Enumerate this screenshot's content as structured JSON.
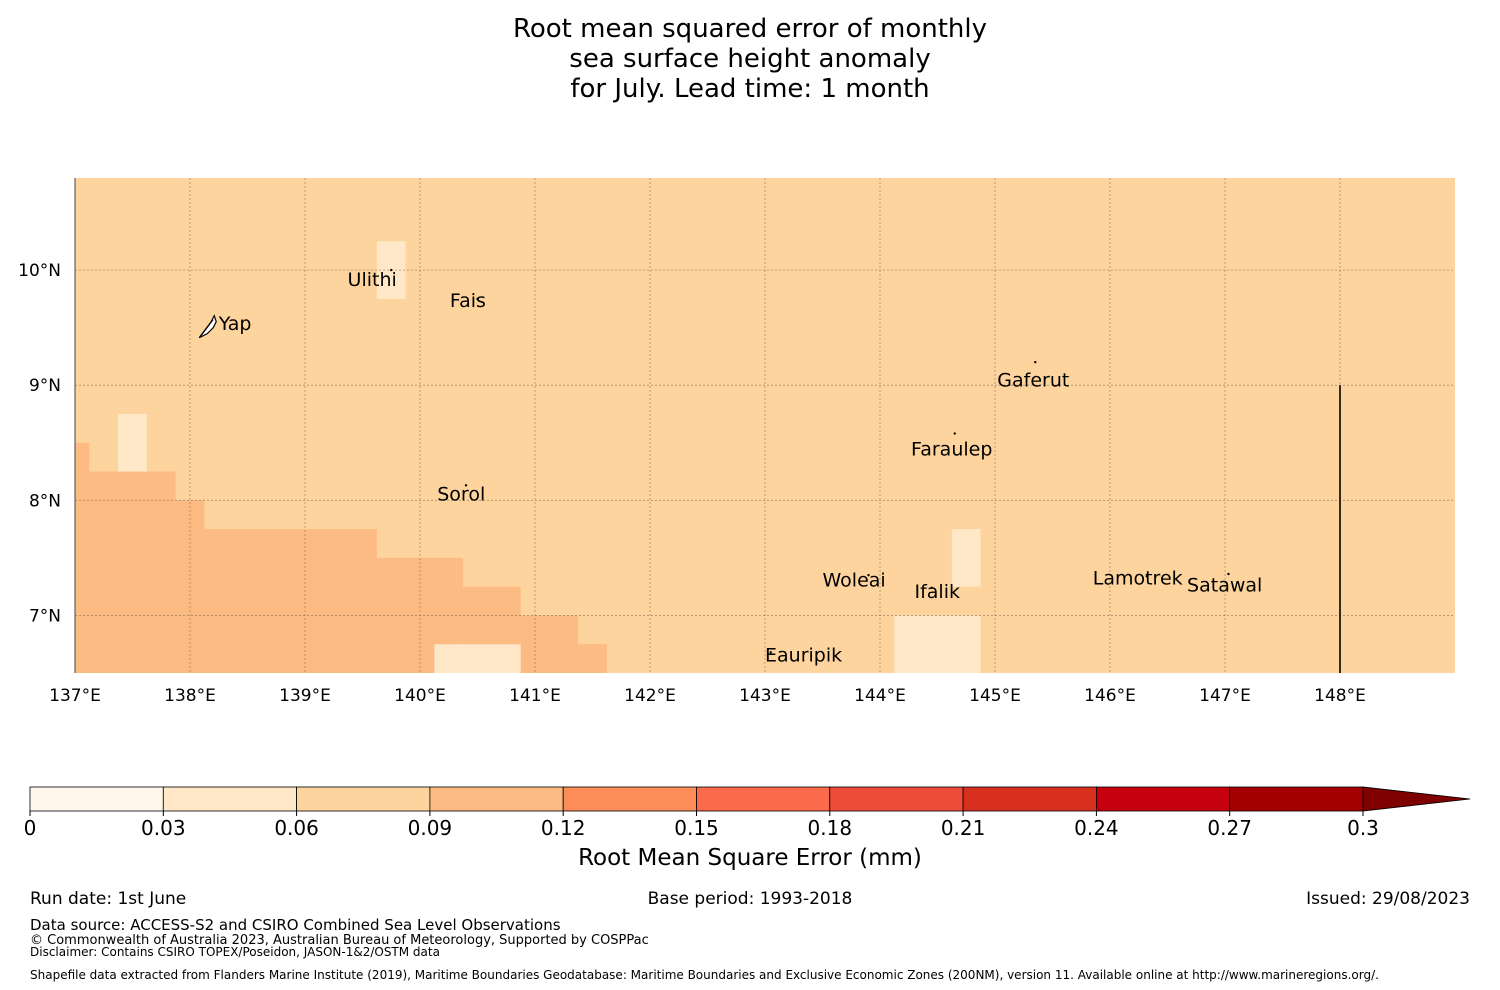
{
  "title": {
    "line1": "Root mean squared error of monthly",
    "line2": "sea surface height anomaly",
    "line3": "for July. Lead time: 1 month"
  },
  "map": {
    "lon_range": [
      137,
      149
    ],
    "lat_range": [
      6.5,
      10.8
    ],
    "x_ticks": [
      {
        "value": 137,
        "label": "137°E"
      },
      {
        "value": 138,
        "label": "138°E"
      },
      {
        "value": 139,
        "label": "139°E"
      },
      {
        "value": 140,
        "label": "140°E"
      },
      {
        "value": 141,
        "label": "141°E"
      },
      {
        "value": 142,
        "label": "142°E"
      },
      {
        "value": 143,
        "label": "143°E"
      },
      {
        "value": 144,
        "label": "144°E"
      },
      {
        "value": 145,
        "label": "145°E"
      },
      {
        "value": 146,
        "label": "146°E"
      },
      {
        "value": 147,
        "label": "147°E"
      },
      {
        "value": 148,
        "label": "148°E"
      }
    ],
    "y_ticks": [
      {
        "value": 10,
        "label": "10°N"
      },
      {
        "value": 9,
        "label": "9°N"
      },
      {
        "value": 8,
        "label": "8°N"
      },
      {
        "value": 7,
        "label": "7°N"
      }
    ],
    "background_color": "#fdd49e",
    "gridlines": true,
    "cells": [
      {
        "lon": [
          137.0,
          137.125
        ],
        "lat": [
          6.5,
          8.5
        ],
        "color": "#fdbb84"
      },
      {
        "lon": [
          137.125,
          137.875
        ],
        "lat": [
          6.5,
          8.25
        ],
        "color": "#fdbb84"
      },
      {
        "lon": [
          137.375,
          137.625
        ],
        "lat": [
          8.25,
          8.75
        ],
        "color": "#fee8c8"
      },
      {
        "lon": [
          137.875,
          138.125
        ],
        "lat": [
          6.5,
          8.0
        ],
        "color": "#fdbb84"
      },
      {
        "lon": [
          138.125,
          139.625
        ],
        "lat": [
          6.5,
          7.75
        ],
        "color": "#fdbb84"
      },
      {
        "lon": [
          139.625,
          140.375
        ],
        "lat": [
          6.5,
          7.5
        ],
        "color": "#fdbb84"
      },
      {
        "lon": [
          140.375,
          140.875
        ],
        "lat": [
          6.5,
          7.25
        ],
        "color": "#fdbb84"
      },
      {
        "lon": [
          140.875,
          141.375
        ],
        "lat": [
          6.5,
          7.0
        ],
        "color": "#fdbb84"
      },
      {
        "lon": [
          141.375,
          141.625
        ],
        "lat": [
          6.5,
          6.75
        ],
        "color": "#fdbb84"
      },
      {
        "lon": [
          140.125,
          140.875
        ],
        "lat": [
          6.5,
          6.75
        ],
        "color": "#fee8c8"
      },
      {
        "lon": [
          139.625,
          139.875
        ],
        "lat": [
          9.75,
          10.25
        ],
        "color": "#fee8c8"
      },
      {
        "lon": [
          144.125,
          144.875
        ],
        "lat": [
          6.5,
          7.0
        ],
        "color": "#fee8c8"
      },
      {
        "lon": [
          144.625,
          144.875
        ],
        "lat": [
          7.25,
          7.75
        ],
        "color": "#fee8c8"
      }
    ],
    "boundary_line": {
      "lon": 148.0,
      "lat": [
        6.5,
        9.0
      ]
    },
    "islands": [
      {
        "name": "Ulithi",
        "lon": 139.75,
        "lat": 10.0,
        "label_lon": 139.37,
        "label_lat": 9.86
      },
      {
        "name": "Fais",
        "lon": 140.5,
        "lat": 9.75,
        "label_lon": 140.26,
        "label_lat": 9.68
      },
      {
        "name": "Yap",
        "lon": 138.15,
        "lat": 9.5,
        "label_lon": 138.25,
        "label_lat": 9.48
      },
      {
        "name": "Gaferut",
        "lon": 145.35,
        "lat": 9.2,
        "label_lon": 145.02,
        "label_lat": 8.99
      },
      {
        "name": "Faraulep",
        "lon": 144.65,
        "lat": 8.58,
        "label_lon": 144.27,
        "label_lat": 8.39
      },
      {
        "name": "Sorol",
        "lon": 140.4,
        "lat": 8.13,
        "label_lon": 140.15,
        "label_lat": 8.0
      },
      {
        "name": "Woleai",
        "lon": 143.9,
        "lat": 7.35,
        "label_lon": 143.5,
        "label_lat": 7.25
      },
      {
        "name": "Ifalik",
        "lon": 144.45,
        "lat": 7.24,
        "label_lon": 144.3,
        "label_lat": 7.15
      },
      {
        "name": "Lamotrek",
        "lon": 146.32,
        "lat": 7.34,
        "label_lon": 145.85,
        "label_lat": 7.27
      },
      {
        "name": "Satawal",
        "lon": 147.03,
        "lat": 7.36,
        "label_lon": 146.67,
        "label_lat": 7.21
      },
      {
        "name": "Eauripik",
        "lon": 143.05,
        "lat": 6.68,
        "label_lon": 143.0,
        "label_lat": 6.6
      }
    ]
  },
  "colorbar": {
    "label": "Root Mean Square Error (mm)",
    "ticks": [
      "0",
      "0.03",
      "0.06",
      "0.09",
      "0.12",
      "0.15",
      "0.18",
      "0.21",
      "0.24",
      "0.27",
      "0.3"
    ],
    "colors": [
      "#fff7ec",
      "#fee8c8",
      "#fdd49e",
      "#fdbb84",
      "#fc8d59",
      "#fb6a4a",
      "#ef4b3a",
      "#d7301f",
      "#c7000d",
      "#a50000"
    ],
    "extend_color": "#7f0000"
  },
  "footer": {
    "run_date": "Run date: 1st June",
    "base_period": "Base period: 1993-2018",
    "issued": "Issued: 29/08/2023",
    "data_source": "Data source: ACCESS-S2 and CSIRO Combined Sea Level Observations",
    "copyright": "© Commonwealth of Australia 2023, Australian Bureau of Meteorology, Supported by COSPPac",
    "disclaimer": "Disclaimer: Contains CSIRO TOPEX/Poseidon, JASON-1&2/OSTM data",
    "shapefile": "Shapefile data extracted from Flanders Marine Institute (2019), Maritime Boundaries Geodatabase: Maritime Boundaries and Exclusive Economic Zones (200NM), version 11. Available online at http://www.marineregions.org/."
  }
}
